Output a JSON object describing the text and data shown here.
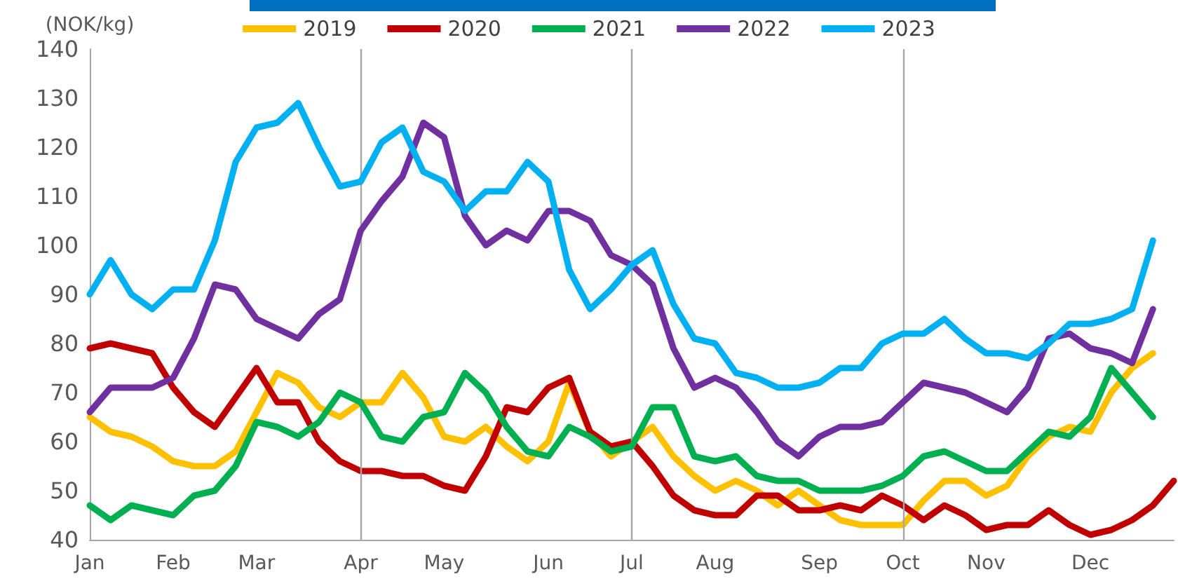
{
  "chart_data": {
    "type": "line",
    "ylabel": "(NOK/kg)",
    "categories": [
      "Jan",
      null,
      null,
      null,
      "Feb",
      null,
      null,
      null,
      "Mar",
      null,
      null,
      null,
      null,
      "Apr",
      null,
      null,
      null,
      "May",
      null,
      null,
      null,
      null,
      "Jun",
      null,
      null,
      null,
      "Jul",
      null,
      null,
      null,
      "Aug",
      null,
      null,
      null,
      null,
      "Sep",
      null,
      null,
      null,
      "Oct",
      null,
      null,
      null,
      "Nov",
      null,
      null,
      null,
      null,
      "Dec",
      null,
      null,
      null,
      null
    ],
    "ylim": [
      40,
      140
    ],
    "yticks": [
      40,
      50,
      60,
      70,
      80,
      90,
      100,
      110,
      120,
      130,
      140
    ],
    "grid": false,
    "legend": "top",
    "marker": "none",
    "line_style": "solid",
    "ref_lines": [
      {
        "axis": "x",
        "value": "Apr",
        "color": "#a6a6a6"
      },
      {
        "axis": "x",
        "value": "Jul",
        "color": "#a6a6a6"
      },
      {
        "axis": "x",
        "value": "Oct",
        "color": "#a6a6a6"
      }
    ],
    "series": [
      {
        "name": "2019",
        "color": "#ffc000",
        "values": [
          65,
          62,
          61,
          59,
          56,
          55,
          55,
          58,
          66,
          74,
          72,
          67,
          65,
          68,
          68,
          74,
          69,
          61,
          60,
          63,
          59,
          56,
          60,
          72,
          62,
          57,
          60,
          63,
          57,
          53,
          50,
          52,
          50,
          47,
          50,
          47,
          44,
          43,
          43,
          43,
          48,
          52,
          52,
          49,
          51,
          57,
          61,
          63,
          62,
          70,
          75,
          78,
          null
        ]
      },
      {
        "name": "2020",
        "color": "#c00000",
        "values": [
          79,
          80,
          79,
          78,
          71,
          66,
          63,
          69,
          75,
          68,
          68,
          60,
          56,
          54,
          54,
          53,
          53,
          51,
          50,
          57,
          67,
          66,
          71,
          73,
          62,
          59,
          60,
          55,
          49,
          46,
          45,
          45,
          49,
          49,
          46,
          46,
          47,
          46,
          49,
          47,
          44,
          47,
          45,
          42,
          43,
          43,
          46,
          43,
          41,
          42,
          44,
          47,
          52
        ]
      },
      {
        "name": "2021",
        "color": "#00b050",
        "values": [
          47,
          44,
          47,
          46,
          45,
          49,
          50,
          55,
          64,
          63,
          61,
          64,
          70,
          68,
          61,
          60,
          65,
          66,
          74,
          70,
          63,
          58,
          57,
          63,
          61,
          58,
          59,
          67,
          67,
          57,
          56,
          57,
          53,
          52,
          52,
          50,
          50,
          50,
          51,
          53,
          57,
          58,
          56,
          54,
          54,
          58,
          62,
          61,
          65,
          75,
          70,
          65,
          null
        ]
      },
      {
        "name": "2022",
        "color": "#7030a0",
        "values": [
          66,
          71,
          71,
          71,
          73,
          81,
          92,
          91,
          85,
          83,
          81,
          86,
          89,
          103,
          109,
          114,
          125,
          122,
          106,
          100,
          103,
          101,
          107,
          107,
          105,
          98,
          96,
          92,
          79,
          71,
          73,
          71,
          66,
          60,
          57,
          61,
          63,
          63,
          64,
          68,
          72,
          71,
          70,
          68,
          66,
          71,
          81,
          82,
          79,
          78,
          76,
          87,
          null
        ]
      },
      {
        "name": "2023",
        "color": "#00b0f0",
        "values": [
          90,
          97,
          90,
          87,
          91,
          91,
          101,
          117,
          124,
          125,
          129,
          120,
          112,
          113,
          121,
          124,
          115,
          113,
          107,
          111,
          111,
          117,
          113,
          95,
          87,
          91,
          96,
          99,
          88,
          81,
          80,
          74,
          73,
          71,
          71,
          72,
          75,
          75,
          80,
          82,
          82,
          85,
          81,
          78,
          78,
          77,
          80,
          84,
          84,
          85,
          87,
          101,
          null
        ]
      }
    ]
  }
}
